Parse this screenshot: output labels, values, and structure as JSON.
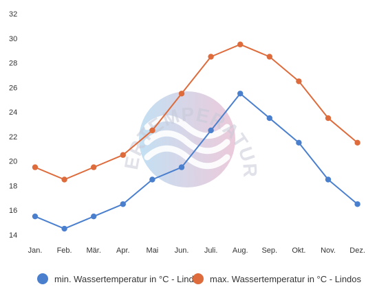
{
  "chart_data": {
    "type": "line",
    "categories": [
      "Jan.",
      "Feb.",
      "Mär.",
      "Apr.",
      "Mai",
      "Jun.",
      "Juli.",
      "Aug.",
      "Sep.",
      "Okt.",
      "Nov.",
      "Dez."
    ],
    "series": [
      {
        "name": "min. Wassertemperatur in °C - Lindos",
        "color": "#4a7fce",
        "values": [
          15.5,
          14.5,
          15.5,
          16.5,
          18.5,
          19.5,
          22.5,
          25.5,
          23.5,
          21.5,
          18.5,
          16.5
        ]
      },
      {
        "name": "max. Wassertemperatur in °C - Lindos",
        "color": "#dd6b3b",
        "values": [
          19.5,
          18.5,
          19.5,
          20.5,
          22.5,
          25.5,
          28.5,
          29.5,
          28.5,
          26.5,
          23.5,
          21.5
        ]
      }
    ],
    "yticks": [
      14,
      16,
      18,
      20,
      22,
      24,
      26,
      28,
      30,
      32
    ],
    "ylim": [
      14,
      32
    ],
    "grid": false,
    "legend_position": "bottom",
    "title": "",
    "xlabel": "",
    "ylabel": ""
  },
  "watermark": {
    "text": "WASSERTEMPERATUR.ORG"
  }
}
